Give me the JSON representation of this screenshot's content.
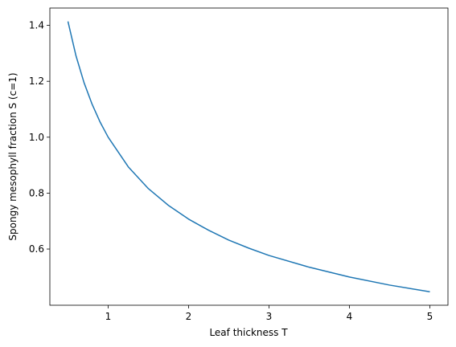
{
  "chart_data": {
    "type": "line",
    "xlabel": "Leaf thickness T",
    "ylabel": "Spongy mesophyll fraction S (c=1)",
    "x": [
      0.5,
      0.6,
      0.7,
      0.8,
      0.9,
      1,
      1.25,
      1.5,
      1.75,
      2,
      2.25,
      2.5,
      2.75,
      3,
      3.5,
      4,
      4.5,
      5
    ],
    "series": [
      {
        "color": "#1f77b4",
        "values": [
          1.414,
          1.291,
          1.195,
          1.118,
          1.054,
          1.0,
          0.894,
          0.816,
          0.756,
          0.707,
          0.667,
          0.632,
          0.603,
          0.577,
          0.535,
          0.5,
          0.471,
          0.447
        ]
      }
    ],
    "xlim": [
      0.275,
      5.225
    ],
    "ylim": [
      0.399,
      1.462
    ],
    "xticks": [
      1,
      2,
      3,
      4,
      5
    ],
    "yticks": [
      0.6,
      0.8,
      {
        "value": 1.0,
        "label": "1.0"
      },
      1.2,
      1.4
    ]
  }
}
